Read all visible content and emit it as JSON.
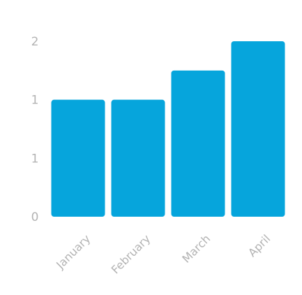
{
  "chart_data": {
    "type": "bar",
    "title": "",
    "xlabel": "",
    "ylabel": "",
    "categories": [
      "January",
      "February",
      "March",
      "April"
    ],
    "values": [
      1.0,
      1.0,
      1.25,
      1.5
    ],
    "ylim": [
      0,
      1.5
    ],
    "y_tick_values": [
      0,
      0.5,
      1.0,
      1.5
    ],
    "y_tick_labels": [
      "0",
      "1",
      "1",
      "2"
    ],
    "grid": false,
    "legend": "none",
    "bar_color": "#06a5dc",
    "tick_label_color": "#b3b3b3"
  }
}
